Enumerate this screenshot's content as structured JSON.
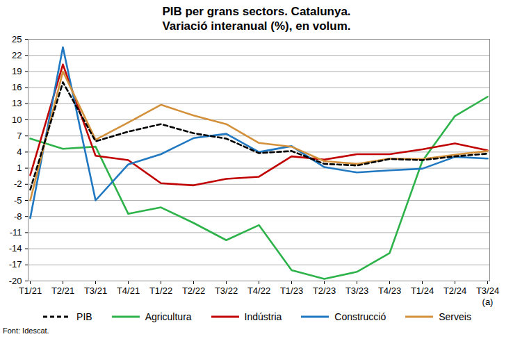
{
  "chart_data": {
    "type": "line",
    "title": "PIB per grans sectors. Catalunya.",
    "subtitle": "Variació interanual (%), en volum.",
    "source": "Font: Idescat.",
    "annotations": [
      {
        "text": "(a)",
        "x": "T3/24"
      }
    ],
    "categories": [
      "T1/21",
      "T2/21",
      "T3/21",
      "T4/21",
      "T1/22",
      "T2/22",
      "T3/22",
      "T4/22",
      "T1/23",
      "T2/23",
      "T3/23",
      "T4/23",
      "T1/24",
      "T2/24",
      "T3/24"
    ],
    "series": [
      {
        "name": "PIB",
        "color": "#000000",
        "line_style": "dashed",
        "values": [
          -3,
          17,
          6,
          7.8,
          9.2,
          7.5,
          6.5,
          3.8,
          4.2,
          1.8,
          1.5,
          2.7,
          2.5,
          3.2,
          3.7
        ]
      },
      {
        "name": "Agricultura",
        "color": "#2db34a",
        "line_style": "solid",
        "values": [
          6.5,
          4.6,
          5,
          -7.5,
          -6.3,
          -9.2,
          -12.4,
          -9.6,
          -18,
          -19.6,
          -18.3,
          -14.8,
          2.3,
          10.7,
          14.3
        ]
      },
      {
        "name": "Indústria",
        "color": "#c00000",
        "line_style": "solid",
        "values": [
          -0.3,
          20.3,
          3.3,
          2.5,
          -1.8,
          -2.2,
          -1,
          -0.6,
          3.2,
          2.6,
          3.6,
          3.6,
          4.5,
          5.6,
          4.3
        ]
      },
      {
        "name": "Construcció",
        "color": "#1f78c1",
        "line_style": "solid",
        "values": [
          -8.3,
          23.5,
          -5,
          1.7,
          3.6,
          6.6,
          7.4,
          4,
          5.1,
          1.2,
          0.2,
          0.6,
          0.9,
          3.1,
          2.8
        ]
      },
      {
        "name": "Serveis",
        "color": "#d4913c",
        "line_style": "solid",
        "values": [
          -5,
          19,
          6.3,
          9.5,
          12.8,
          10.8,
          9.2,
          5.7,
          5,
          2.3,
          1.8,
          2.8,
          2.7,
          3.5,
          4.2
        ]
      }
    ],
    "ylim": [
      -20,
      25
    ],
    "yticks": [
      -20,
      -17,
      -14,
      -11,
      -8,
      -5,
      -2,
      1,
      4,
      7,
      10,
      13,
      16,
      19,
      22,
      25
    ],
    "grid": true,
    "legend": "bottom"
  }
}
